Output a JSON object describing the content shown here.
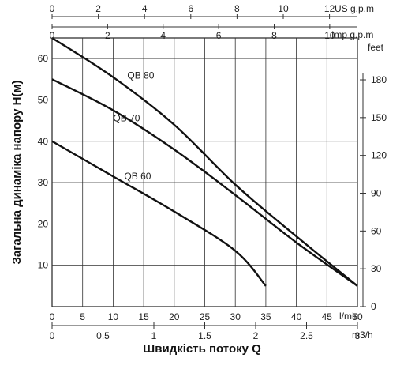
{
  "chart_data": {
    "type": "line",
    "title": "",
    "xlabel": "Швидкість потоку Q",
    "ylabel": "Загальна динаміка напору H(м)",
    "xlim": [
      0,
      50
    ],
    "ylim": [
      0,
      65
    ],
    "grid": true,
    "x_ticks": [
      0,
      5,
      10,
      15,
      20,
      25,
      30,
      35,
      40,
      45,
      50
    ],
    "y_ticks": [
      10,
      20,
      30,
      40,
      50,
      60
    ],
    "x_unit": "l/min",
    "secondary_axes": {
      "m3h": {
        "unit": "m3/h",
        "ticks": [
          0,
          0.5,
          1,
          1.5,
          2,
          2.5,
          3
        ]
      },
      "us_gpm": {
        "unit": "US g.p.m",
        "ticks": [
          0,
          2,
          4,
          6,
          8,
          10,
          12
        ]
      },
      "imp_gpm": {
        "unit": "Imp g.p.m",
        "ticks": [
          0,
          2,
          4,
          6,
          8,
          10
        ]
      },
      "feet": {
        "unit": "feet",
        "ticks": [
          0,
          30,
          60,
          90,
          120,
          150,
          180
        ]
      }
    },
    "series": [
      {
        "name": "QB 80",
        "x": [
          0,
          10,
          20,
          30,
          40,
          50
        ],
        "y": [
          65,
          55.5,
          44,
          29.5,
          17,
          5
        ]
      },
      {
        "name": "QB 70",
        "x": [
          0,
          10,
          20,
          30,
          40,
          50
        ],
        "y": [
          55,
          47.5,
          38,
          27,
          15.5,
          5
        ]
      },
      {
        "name": "QB 60",
        "x": [
          0,
          10,
          20,
          30,
          35
        ],
        "y": [
          40,
          31.5,
          23,
          13.5,
          5
        ]
      }
    ]
  }
}
